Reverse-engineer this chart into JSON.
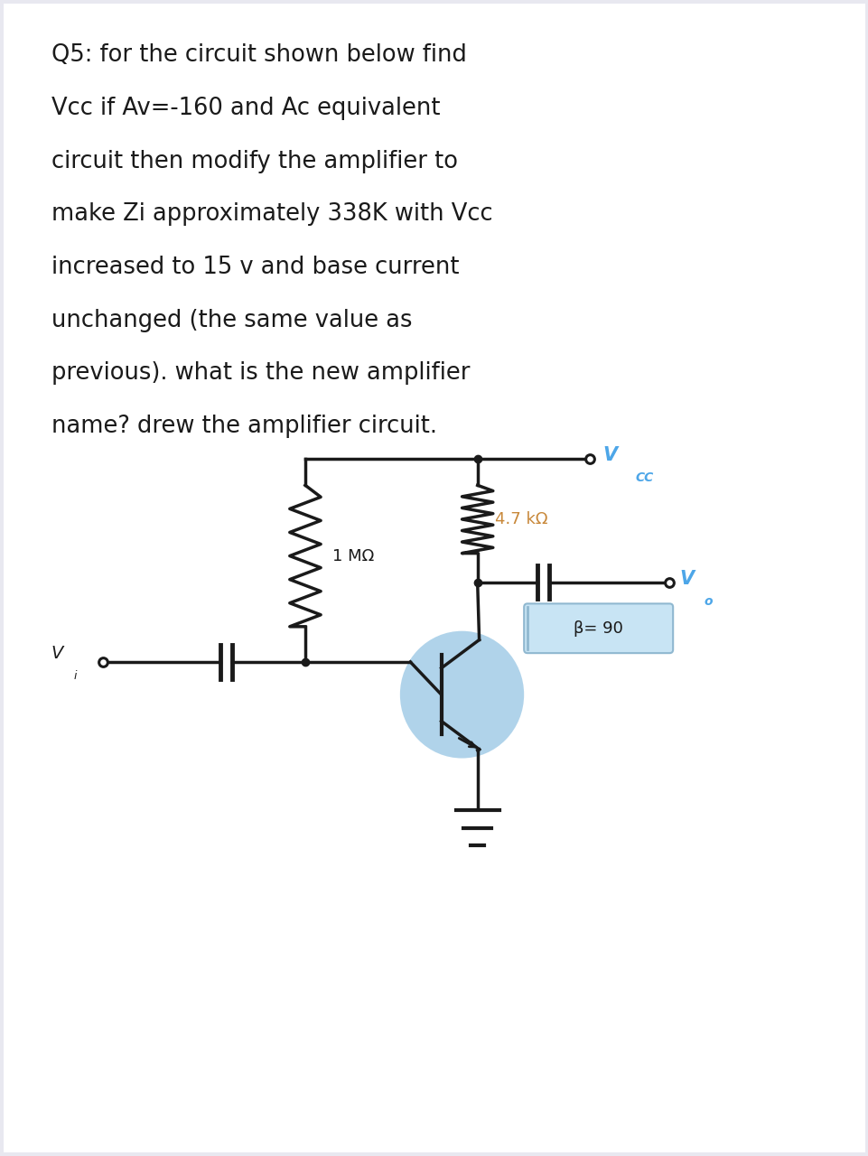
{
  "bg_color": "#e8e8f0",
  "white_bg": "#ffffff",
  "text_color": "#1a1a1a",
  "blue_color": "#4da6e8",
  "orange_color": "#c8883a",
  "question_text": "Q5: for the circuit shown below find\nVcc if Av=-160 and Ac equivalent\ncircuit then modify the amplifier to\nmake Zi approximately 338K with Vcc\nincreased to 15 v and base current\nunchanged (the same value as\nprevious). what is the new amplifier\nname? drew the amplifier circuit.",
  "r1_label": "1 MΩ",
  "rc_label": "4.7 kΩ",
  "vcc_label": "V",
  "vcc_sub": "CC",
  "vo_label": "V",
  "vo_sub": "o",
  "vi_label": "V",
  "vi_sub": "i",
  "beta_label": "β= 90",
  "trans_circle_color": "#a8cfe8",
  "beta_box_color": "#c8e4f4",
  "beta_box_edge": "#90b8d0"
}
